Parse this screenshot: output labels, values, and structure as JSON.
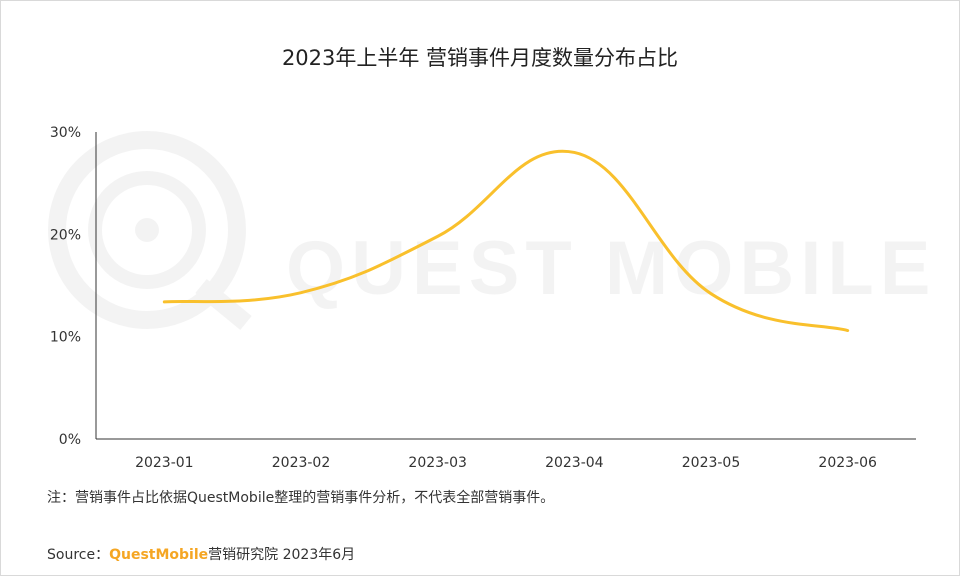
{
  "chart_data": {
    "type": "line",
    "title": "2023年上半年 营销事件月度数量分布占比",
    "categories": [
      "2023-01",
      "2023-02",
      "2023-03",
      "2023-04",
      "2023-05",
      "2023-06"
    ],
    "series": [
      {
        "values": [
          13.4,
          14.3,
          19.8,
          28.0,
          14.2,
          10.6
        ]
      }
    ],
    "y_ticks": [
      "0%",
      "10%",
      "20%",
      "30%"
    ],
    "ylim": [
      0,
      30
    ],
    "line_color": "#f9c02c",
    "grid": false
  },
  "watermark": "QUEST MOBILE",
  "note": "注：营销事件占比依据QuestMobile整理的营销事件分析，不代表全部营销事件。",
  "source": {
    "label": "Source：",
    "brand": "QuestMobile",
    "text": "营销研究院 2023年6月"
  }
}
